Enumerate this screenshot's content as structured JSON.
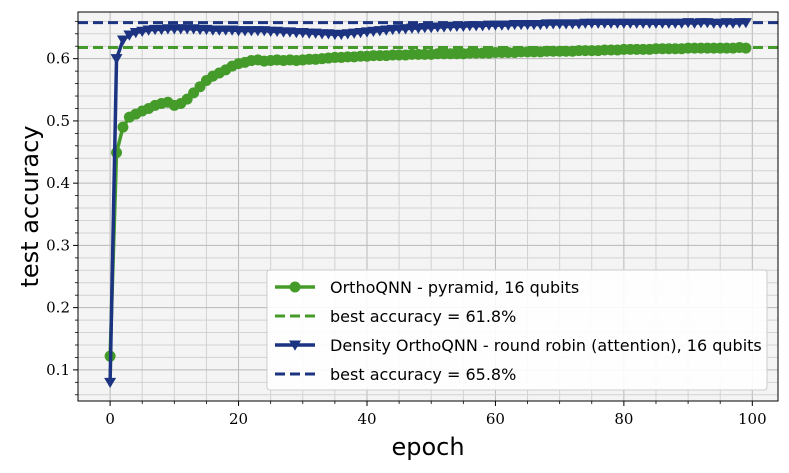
{
  "chart_data": {
    "type": "line",
    "xlabel": "epoch",
    "ylabel": "test accuracy",
    "xlim": [
      -5,
      104
    ],
    "ylim": [
      0.05,
      0.675
    ],
    "xticks": [
      0,
      20,
      40,
      60,
      80,
      100
    ],
    "yticks": [
      0.1,
      0.2,
      0.3,
      0.4,
      0.5,
      0.6
    ],
    "grid": true,
    "legend_position": "bottom-right",
    "colors": {
      "green": "#459b2a",
      "navy": "#1b3380",
      "background": "#f4f4f4"
    },
    "series": [
      {
        "name": "OrthoQNN - pyramid, 16 qubits",
        "marker": "circle",
        "color": "#459b2a",
        "x": [
          0,
          1,
          2,
          3,
          4,
          5,
          6,
          7,
          8,
          9,
          10,
          11,
          12,
          13,
          14,
          15,
          16,
          17,
          18,
          19,
          20,
          21,
          22,
          23,
          24,
          25,
          26,
          27,
          28,
          29,
          30,
          31,
          32,
          33,
          34,
          35,
          36,
          37,
          38,
          39,
          40,
          41,
          42,
          43,
          44,
          45,
          46,
          47,
          48,
          49,
          50,
          51,
          52,
          53,
          54,
          55,
          56,
          57,
          58,
          59,
          60,
          61,
          62,
          63,
          64,
          65,
          66,
          67,
          68,
          69,
          70,
          71,
          72,
          73,
          74,
          75,
          76,
          77,
          78,
          79,
          80,
          81,
          82,
          83,
          84,
          85,
          86,
          87,
          88,
          89,
          90,
          91,
          92,
          93,
          94,
          95,
          96,
          97,
          98,
          99
        ],
        "values": [
          0.122,
          0.449,
          0.49,
          0.506,
          0.511,
          0.516,
          0.52,
          0.525,
          0.528,
          0.53,
          0.525,
          0.528,
          0.535,
          0.545,
          0.555,
          0.565,
          0.572,
          0.577,
          0.582,
          0.588,
          0.592,
          0.594,
          0.597,
          0.598,
          0.596,
          0.597,
          0.598,
          0.597,
          0.598,
          0.597,
          0.598,
          0.599,
          0.599,
          0.6,
          0.601,
          0.602,
          0.602,
          0.603,
          0.603,
          0.604,
          0.604,
          0.605,
          0.605,
          0.605,
          0.606,
          0.606,
          0.606,
          0.607,
          0.607,
          0.607,
          0.607,
          0.608,
          0.608,
          0.608,
          0.608,
          0.608,
          0.609,
          0.609,
          0.609,
          0.609,
          0.61,
          0.61,
          0.61,
          0.61,
          0.611,
          0.611,
          0.611,
          0.611,
          0.612,
          0.612,
          0.612,
          0.612,
          0.612,
          0.613,
          0.613,
          0.613,
          0.613,
          0.614,
          0.614,
          0.614,
          0.615,
          0.615,
          0.615,
          0.615,
          0.615,
          0.616,
          0.616,
          0.616,
          0.616,
          0.616,
          0.617,
          0.617,
          0.617,
          0.617,
          0.617,
          0.617,
          0.617,
          0.617,
          0.618,
          0.617
        ]
      },
      {
        "name": "best accuracy = 61.8%",
        "style": "dashed",
        "color": "#459b2a",
        "value": 0.618
      },
      {
        "name": "Density OrthoQNN - round robin (attention), 16 qubits",
        "marker": "triangle-down",
        "color": "#1b3380",
        "x": [
          0,
          1,
          2,
          3,
          4,
          5,
          6,
          7,
          8,
          9,
          10,
          11,
          12,
          13,
          14,
          15,
          16,
          17,
          18,
          19,
          20,
          21,
          22,
          23,
          24,
          25,
          26,
          27,
          28,
          29,
          30,
          31,
          32,
          33,
          34,
          35,
          36,
          37,
          38,
          39,
          40,
          41,
          42,
          43,
          44,
          45,
          46,
          47,
          48,
          49,
          50,
          51,
          52,
          53,
          54,
          55,
          56,
          57,
          58,
          59,
          60,
          61,
          62,
          63,
          64,
          65,
          66,
          67,
          68,
          69,
          70,
          71,
          72,
          73,
          74,
          75,
          76,
          77,
          78,
          79,
          80,
          81,
          82,
          83,
          84,
          85,
          86,
          87,
          88,
          89,
          90,
          91,
          92,
          93,
          94,
          95,
          96,
          97,
          98,
          99
        ],
        "values": [
          0.08,
          0.6,
          0.63,
          0.638,
          0.642,
          0.644,
          0.646,
          0.647,
          0.647,
          0.648,
          0.648,
          0.648,
          0.648,
          0.648,
          0.647,
          0.647,
          0.646,
          0.646,
          0.646,
          0.646,
          0.645,
          0.645,
          0.645,
          0.645,
          0.645,
          0.644,
          0.644,
          0.643,
          0.643,
          0.642,
          0.642,
          0.641,
          0.641,
          0.64,
          0.64,
          0.639,
          0.639,
          0.64,
          0.641,
          0.642,
          0.643,
          0.644,
          0.645,
          0.646,
          0.647,
          0.648,
          0.648,
          0.649,
          0.649,
          0.65,
          0.65,
          0.651,
          0.651,
          0.652,
          0.652,
          0.652,
          0.653,
          0.653,
          0.653,
          0.654,
          0.654,
          0.654,
          0.654,
          0.655,
          0.655,
          0.655,
          0.655,
          0.655,
          0.656,
          0.656,
          0.656,
          0.656,
          0.656,
          0.656,
          0.657,
          0.657,
          0.657,
          0.657,
          0.657,
          0.657,
          0.657,
          0.657,
          0.657,
          0.657,
          0.657,
          0.657,
          0.657,
          0.657,
          0.657,
          0.657,
          0.658,
          0.657,
          0.658,
          0.658,
          0.657,
          0.657,
          0.658,
          0.657,
          0.658,
          0.658
        ]
      },
      {
        "name": "best accuracy = 65.8%",
        "style": "dashed",
        "color": "#1b3380",
        "value": 0.658
      }
    ]
  }
}
